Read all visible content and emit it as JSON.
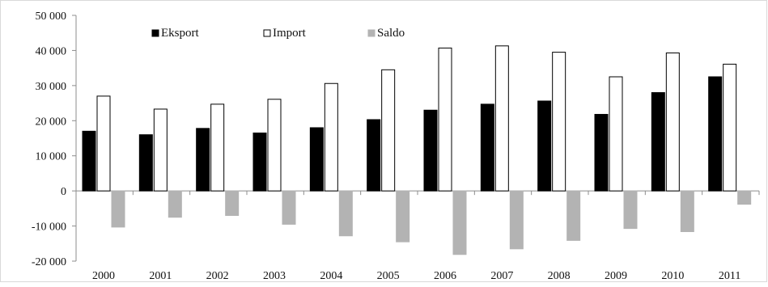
{
  "chart_data": {
    "type": "bar",
    "title": "",
    "xlabel": "",
    "ylabel": "",
    "categories": [
      "2000",
      "2001",
      "2002",
      "2003",
      "2004",
      "2005",
      "2006",
      "2007",
      "2008",
      "2009",
      "2010",
      "2011"
    ],
    "series": [
      {
        "name": "Eksport",
        "color": "#000000",
        "values": [
          17000,
          16000,
          17800,
          16500,
          18000,
          20300,
          23000,
          24700,
          25600,
          21800,
          28000,
          32500
        ]
      },
      {
        "name": "Import",
        "color": "#ffffff",
        "values": [
          27000,
          23300,
          24700,
          26100,
          30600,
          34500,
          40700,
          41300,
          39500,
          32500,
          39300,
          36100
        ]
      },
      {
        "name": "Saldo",
        "color": "#b3b3b3",
        "values": [
          -10300,
          -7500,
          -7000,
          -9500,
          -12800,
          -14500,
          -18100,
          -16500,
          -14100,
          -10700,
          -11600,
          -3800
        ]
      }
    ],
    "ylim": [
      -20000,
      50000
    ],
    "yticks": [
      50000,
      40000,
      30000,
      20000,
      10000,
      0,
      -10000,
      -20000
    ],
    "ytick_labels": [
      "50 000",
      "40 000",
      "30 000",
      "20 000",
      "10 000",
      "0",
      "-10 000",
      "-20 000"
    ],
    "grid": false,
    "legend": "top-left"
  }
}
